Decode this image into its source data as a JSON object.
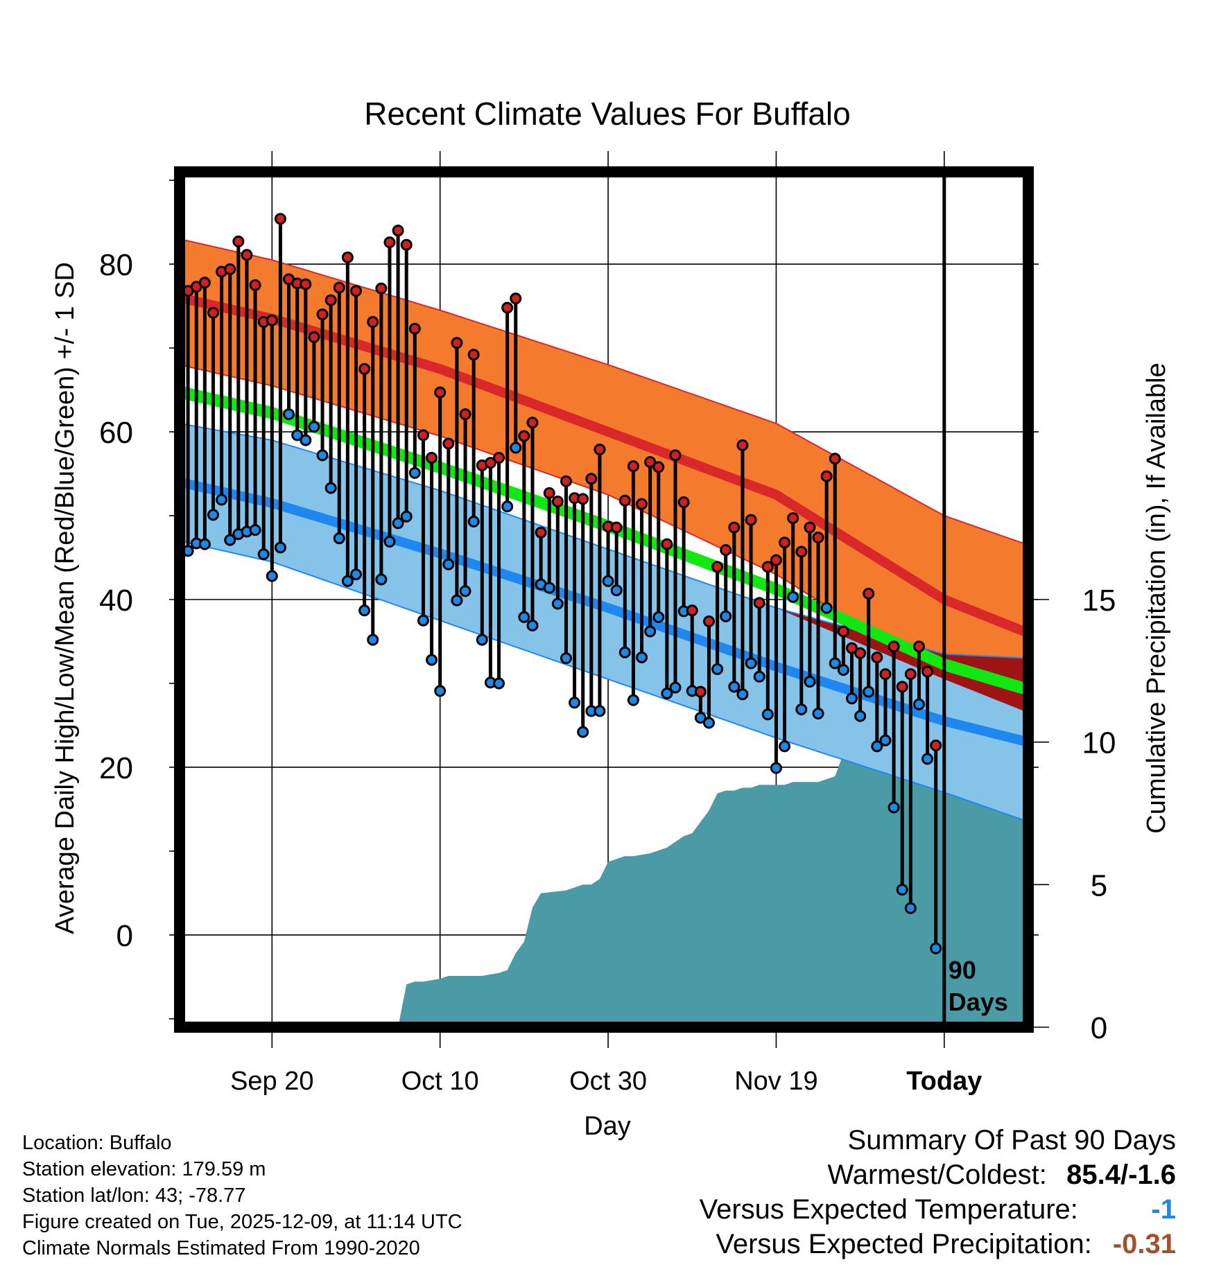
{
  "chart_data": {
    "type": "climate-range",
    "title": "Recent Climate Values For Buffalo",
    "xlabel": "Day",
    "ylabel": "Average Daily High/Low/Mean (Red/Blue/Green) +/- 1 SD",
    "y2label": "Cumulative Precipitation (in), If Available",
    "xlim": [
      -11,
      90
    ],
    "ylim": [
      -11,
      91
    ],
    "y_ticks": [
      0,
      20,
      40,
      60,
      80
    ],
    "y_tick_labels": [
      "0",
      "20",
      "40",
      "60",
      "80"
    ],
    "y2lim": [
      0,
      30
    ],
    "y2_ticks": [
      0,
      5,
      10,
      15
    ],
    "y2_tick_labels": [
      "0",
      "5",
      "10",
      "15"
    ],
    "x_ticks": [
      0,
      20,
      40,
      60,
      80
    ],
    "x_tick_labels": [
      "Sep 20",
      "Oct 10",
      "Oct 30",
      "Nov 19",
      "Today"
    ],
    "today_day": 80,
    "today_label": "90\nDays",
    "colors": {
      "high_band": "#f47a2e",
      "high_mean": "#d8282a",
      "low_band": "#85c3e8",
      "low_mean": "#1e88f0",
      "mean_band": "#11e811",
      "overlap": "#9e1414",
      "precip": "#4a9ba5",
      "high_point": "#d02020",
      "low_point": "#1e88e5"
    },
    "normals": {
      "days": [
        -11,
        0,
        20,
        40,
        60,
        80,
        90
      ],
      "high_mean": [
        76,
        73.5,
        67.5,
        60,
        52.5,
        40,
        36
      ],
      "high_sd_upper": [
        83,
        80.5,
        74.5,
        68,
        61,
        50,
        46.5
      ],
      "high_sd_lower": [
        68,
        65.5,
        59.5,
        52.5,
        43,
        30.5,
        26.5
      ],
      "low_mean": [
        54,
        51.5,
        45.5,
        39,
        32,
        25.5,
        23
      ],
      "low_sd_upper": [
        61,
        59,
        53,
        46,
        39,
        33.5,
        33
      ],
      "low_sd_lower": [
        47,
        44.5,
        37.5,
        30.5,
        23.5,
        17,
        13.5
      ],
      "mean_lower": [
        64,
        61.5,
        55,
        48,
        40.5,
        31.5,
        28.5
      ],
      "mean_upper": [
        65.5,
        63,
        56.5,
        49.5,
        42,
        33,
        30
      ]
    },
    "daily": {
      "days": [
        -10,
        -9,
        -8,
        -7,
        -6,
        -5,
        -4,
        -3,
        -2,
        -1,
        0,
        1,
        2,
        3,
        4,
        5,
        6,
        7,
        8,
        9,
        10,
        11,
        12,
        13,
        14,
        15,
        16,
        17,
        18,
        19,
        20,
        21,
        22,
        23,
        24,
        25,
        26,
        27,
        28,
        29,
        30,
        31,
        32,
        33,
        34,
        35,
        36,
        37,
        38,
        39,
        40,
        41,
        42,
        43,
        44,
        45,
        46,
        47,
        48,
        49,
        50,
        51,
        52,
        53,
        54,
        55,
        56,
        57,
        58,
        59,
        60,
        61,
        62,
        63,
        64,
        65,
        66,
        67,
        68,
        69,
        70,
        71,
        72,
        73,
        74,
        75,
        76,
        77,
        78,
        79
      ],
      "high": [
        76.8,
        77.3,
        77.8,
        74.2,
        79.1,
        79.4,
        82.7,
        81.1,
        77.5,
        73.1,
        73.3,
        85.4,
        78.2,
        77.7,
        77.6,
        71.3,
        74,
        75.7,
        77.2,
        80.8,
        76.8,
        67.5,
        73.1,
        77.1,
        82.6,
        84,
        82.3,
        72.3,
        59.6,
        56.9,
        64.7,
        58.6,
        70.6,
        62.1,
        69.2,
        56,
        56.3,
        56.9,
        74.8,
        75.9,
        59.5,
        61.1,
        48,
        52.7,
        51.7,
        54.1,
        52.1,
        52,
        54.4,
        57.9,
        48.7,
        48.6,
        51.8,
        55.9,
        51.4,
        56.4,
        55.8,
        46.6,
        57.2,
        51.6,
        38.7,
        29,
        37.4,
        43.9,
        45.9,
        48.6,
        58.4,
        49.5,
        39.6,
        43.9,
        44.7,
        46.8,
        49.7,
        45.7,
        48.6,
        47.4,
        54.7,
        56.8,
        36.2,
        34.2,
        33.6,
        40.7,
        33.1,
        31.1,
        34.4,
        29.6,
        31.1,
        34.4,
        31.4,
        22.6
      ],
      "low": [
        45.8,
        46.7,
        46.6,
        50.1,
        51.9,
        47.1,
        47.8,
        48.1,
        48.3,
        45.4,
        42.8,
        46.2,
        62.1,
        59.6,
        59,
        60.6,
        57.2,
        53.3,
        47.3,
        42.2,
        43,
        38.7,
        35.2,
        42.4,
        46.9,
        49.1,
        49.9,
        55.1,
        37.5,
        32.8,
        29.1,
        44.2,
        39.9,
        41,
        49.3,
        35.2,
        30.1,
        30,
        51.1,
        58.1,
        37.9,
        36.9,
        41.8,
        41.4,
        39.5,
        33,
        27.7,
        24.2,
        26.7,
        26.7,
        42.2,
        41.1,
        33.7,
        28,
        33.1,
        36.2,
        37.9,
        28.8,
        29.5,
        38.6,
        29.1,
        25.9,
        25.3,
        31.7,
        38,
        29.6,
        28.7,
        32.4,
        30.8,
        26.3,
        19.9,
        22.5,
        40.3,
        26.9,
        30.2,
        26.4,
        39,
        32.4,
        31.6,
        28.2,
        26.1,
        29,
        22.5,
        23.2,
        15.2,
        5.4,
        3.2,
        27.5,
        21,
        -1.6
      ]
    },
    "precip_cumulative": {
      "days": [
        -11,
        15,
        16,
        17,
        18,
        20,
        21,
        22,
        25,
        27,
        28,
        29,
        30,
        31,
        32,
        35,
        37,
        38,
        39,
        40,
        41,
        42,
        43,
        45,
        46,
        47,
        48,
        49,
        50,
        51,
        52,
        53,
        54,
        55,
        56,
        57,
        58,
        59,
        60,
        61,
        62,
        63,
        64,
        65,
        66,
        67,
        68,
        69,
        70,
        71,
        72,
        73,
        74,
        75,
        76,
        77,
        78,
        80,
        90
      ],
      "values": [
        0,
        0,
        1.5,
        1.6,
        1.6,
        1.7,
        1.8,
        1.8,
        1.8,
        1.9,
        2.0,
        2.6,
        3.0,
        4.2,
        4.7,
        4.8,
        5.0,
        5.0,
        5.2,
        5.8,
        5.9,
        6.0,
        6.0,
        6.1,
        6.2,
        6.3,
        6.5,
        6.7,
        6.8,
        7.2,
        7.6,
        8.2,
        8.3,
        8.3,
        8.4,
        8.4,
        8.5,
        8.5,
        8.5,
        8.5,
        8.6,
        8.6,
        8.6,
        8.6,
        8.7,
        8.8,
        9.6,
        9.9,
        9.9,
        10.1,
        10.2,
        10.2,
        10.3,
        10.7,
        10.8,
        10.8,
        10.8,
        10.9,
        10.9
      ]
    }
  },
  "info": {
    "location": "Location: Buffalo",
    "elevation": "Station elevation: 179.59 m",
    "latlon": "Station lat/lon: 43; -78.77",
    "created": "Figure created on Tue, 2025-12-09, at 11:14 UTC",
    "normals": "Climate Normals Estimated From 1990-2020"
  },
  "summary": {
    "title": "Summary Of Past 90 Days",
    "warmest_label": "Warmest/Coldest:",
    "warmest_value": "85.4/-1.6",
    "temp_label": "Versus Expected Temperature:",
    "temp_value": "-1",
    "temp_color": "#1e88e5",
    "precip_label": "Versus Expected Precipitation:",
    "precip_value": "-0.31",
    "precip_color": "#a0522d"
  }
}
